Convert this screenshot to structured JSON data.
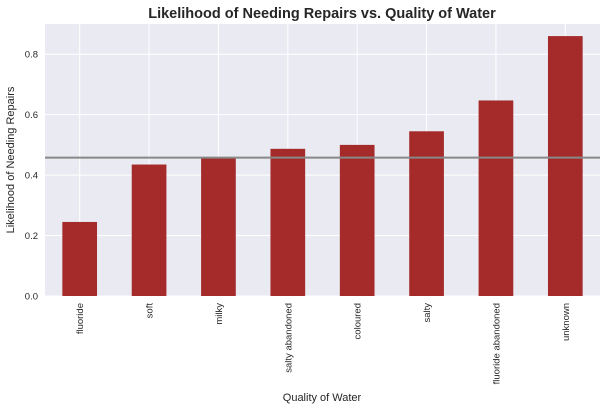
{
  "chart_data": {
    "type": "bar",
    "title": "Likelihood of Needing Repairs vs. Quality of Water",
    "xlabel": "Quality of Water",
    "ylabel": "Likelihood of Needing Repairs",
    "categories": [
      "fluoride",
      "soft",
      "milky",
      "salty abandoned",
      "coloured",
      "salty",
      "fluoride abandoned",
      "unknown"
    ],
    "values": [
      0.245,
      0.435,
      0.458,
      0.487,
      0.5,
      0.545,
      0.647,
      0.86
    ],
    "ylim": [
      0,
      0.9
    ],
    "yticks": [
      0.0,
      0.2,
      0.4,
      0.6,
      0.8
    ],
    "reference_line": 0.458,
    "grid": true,
    "colors": {
      "bar": "#a52a2a",
      "reference_line": "#888888",
      "plot_background": "#eaeaf2",
      "grid": "#ffffff"
    }
  }
}
